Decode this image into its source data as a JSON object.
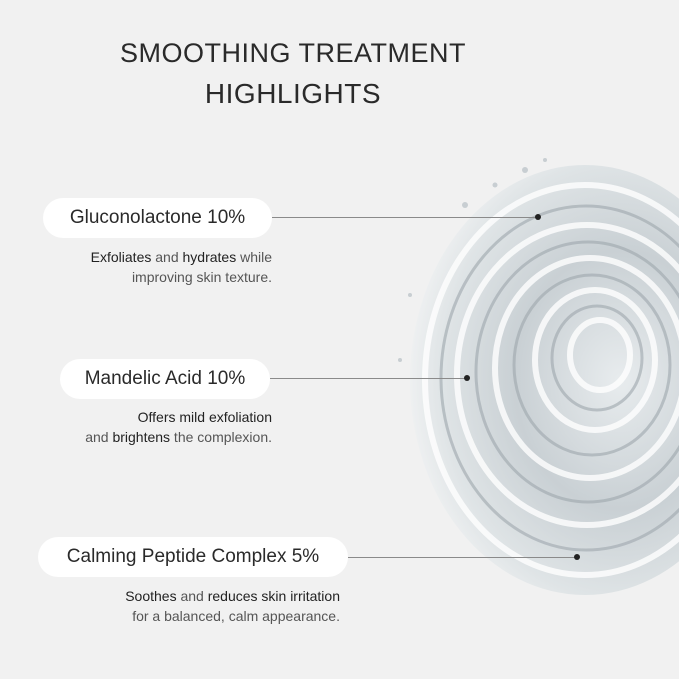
{
  "header": {
    "title_line1": "SMOOTHING TREATMENT",
    "title_line2": "HIGHLIGHTS"
  },
  "ingredients": [
    {
      "name": "Gluconolactone 10%",
      "desc_line1": [
        {
          "t": "Exfoliates",
          "b": true
        },
        {
          "t": " and ",
          "b": false
        },
        {
          "t": "hydrates",
          "b": true
        },
        {
          "t": " while",
          "b": false
        }
      ],
      "desc_line2": [
        {
          "t": "improving skin texture.",
          "b": false
        }
      ]
    },
    {
      "name": "Mandelic Acid 10%",
      "desc_line1": [
        {
          "t": "Offers",
          "b": true
        },
        {
          "t": " ",
          "b": false
        },
        {
          "t": "mild exfoliation",
          "b": true
        }
      ],
      "desc_line2": [
        {
          "t": "and ",
          "b": false
        },
        {
          "t": "brightens",
          "b": true
        },
        {
          "t": " the complexion.",
          "b": false
        }
      ]
    },
    {
      "name": "Calming Peptide Complex 5%",
      "desc_line1": [
        {
          "t": "Soothes",
          "b": true
        },
        {
          "t": " and ",
          "b": false
        },
        {
          "t": "reduces skin irritation",
          "b": true
        }
      ],
      "desc_line2": [
        {
          "t": "for a balanced, calm appearance.",
          "b": false
        }
      ]
    }
  ],
  "colors": {
    "background": "#f1f1f1",
    "pill": "#ffffff",
    "text": "#222222"
  }
}
